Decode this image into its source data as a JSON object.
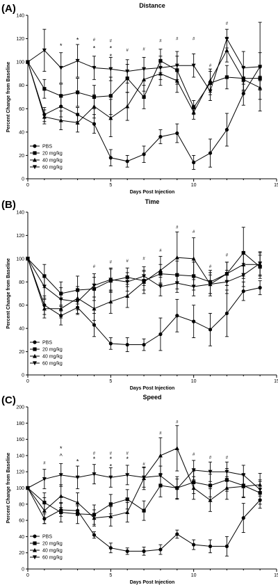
{
  "chart_data": [
    {
      "type": "line",
      "panel_label": "(A)",
      "title": "Distance",
      "xlabel": "Days Post Injection",
      "ylabel": "Percent Change from Baseline",
      "xlim": [
        0,
        15
      ],
      "ylim": [
        0,
        140
      ],
      "x_ticks": [
        0,
        5,
        10,
        15
      ],
      "y_ticks": [
        0,
        20,
        40,
        60,
        80,
        100,
        120,
        140
      ],
      "legend_position": "bottom-left",
      "series": [
        {
          "name": "PBS",
          "marker": "circle",
          "x": [
            0,
            1,
            2,
            3,
            4,
            5,
            6,
            7,
            8,
            9,
            10,
            11,
            12,
            13,
            14
          ],
          "y": [
            100,
            55,
            62,
            55,
            47,
            18,
            15,
            21,
            36,
            39,
            14,
            22,
            42,
            73,
            96
          ],
          "err": [
            0,
            6,
            9,
            6,
            8,
            7,
            5,
            7,
            6,
            8,
            6,
            12,
            14,
            10,
            12
          ]
        },
        {
          "name": "20 mg/kg",
          "marker": "square",
          "x": [
            0,
            1,
            2,
            3,
            4,
            5,
            6,
            7,
            8,
            9,
            10,
            11,
            12,
            13,
            14
          ],
          "y": [
            100,
            77,
            71,
            74,
            70,
            71,
            86,
            70,
            101,
            93,
            61,
            82,
            87,
            86,
            86
          ],
          "err": [
            0,
            8,
            10,
            12,
            10,
            16,
            12,
            10,
            10,
            12,
            6,
            10,
            10,
            10,
            10
          ]
        },
        {
          "name": "40 mg/kg",
          "marker": "triangle-up",
          "x": [
            0,
            1,
            2,
            3,
            4,
            5,
            6,
            7,
            8,
            9,
            10,
            11,
            12,
            13,
            14
          ],
          "y": [
            100,
            53,
            50,
            48,
            62,
            52,
            62,
            85,
            90,
            84,
            57,
            84,
            110,
            85,
            78
          ],
          "err": [
            0,
            6,
            8,
            8,
            10,
            16,
            12,
            10,
            10,
            10,
            6,
            10,
            10,
            10,
            10
          ]
        },
        {
          "name": "60 mg/kg",
          "marker": "triangle-down",
          "x": [
            0,
            1,
            2,
            3,
            4,
            5,
            6,
            7,
            8,
            9,
            10,
            11,
            12,
            13,
            14
          ],
          "y": [
            100,
            110,
            95,
            101,
            95,
            94,
            92,
            94,
            95,
            97,
            97,
            75,
            120,
            95,
            96
          ],
          "err": [
            0,
            18,
            13,
            14,
            10,
            10,
            10,
            10,
            10,
            12,
            10,
            8,
            8,
            14,
            38
          ]
        }
      ],
      "annotations": [
        {
          "x": 2,
          "y": 112,
          "text": "*"
        },
        {
          "x": 3,
          "y": 117,
          "text": "*"
        },
        {
          "x": 4,
          "y": 118,
          "text": "#"
        },
        {
          "x": 4,
          "y": 110,
          "text": "*"
        },
        {
          "x": 5,
          "y": 117,
          "text": "#"
        },
        {
          "x": 5,
          "y": 110,
          "text": "*"
        },
        {
          "x": 5,
          "y": 103,
          "text": "*"
        },
        {
          "x": 6,
          "y": 109,
          "text": "#"
        },
        {
          "x": 7,
          "y": 110,
          "text": "#"
        },
        {
          "x": 8,
          "y": 117,
          "text": "#"
        },
        {
          "x": 9,
          "y": 119,
          "text": "#"
        },
        {
          "x": 10,
          "y": 119,
          "text": "#"
        },
        {
          "x": 11,
          "y": 96,
          "text": "#"
        },
        {
          "x": 12,
          "y": 132,
          "text": "#"
        }
      ]
    },
    {
      "type": "line",
      "panel_label": "(B)",
      "title": "Time",
      "xlabel": "Days Post Injection",
      "ylabel": "Percent Change from Baseline",
      "xlim": [
        0,
        15
      ],
      "ylim": [
        0,
        140
      ],
      "x_ticks": [
        0,
        5,
        10,
        15
      ],
      "y_ticks": [
        0,
        20,
        40,
        60,
        80,
        100,
        120,
        140
      ],
      "legend_position": "bottom-left",
      "series": [
        {
          "name": "PBS",
          "marker": "circle",
          "x": [
            0,
            1,
            2,
            3,
            4,
            5,
            6,
            7,
            8,
            9,
            10,
            11,
            12,
            13,
            14
          ],
          "y": [
            100,
            60,
            51,
            58,
            43,
            27,
            26,
            26,
            35,
            51,
            46,
            39,
            53,
            72,
            75
          ],
          "err": [
            0,
            8,
            8,
            6,
            10,
            5,
            6,
            5,
            14,
            14,
            14,
            14,
            20,
            8,
            6
          ]
        },
        {
          "name": "20 mg/kg",
          "marker": "square",
          "x": [
            0,
            1,
            2,
            3,
            4,
            5,
            6,
            7,
            8,
            9,
            10,
            11,
            12,
            13,
            14
          ],
          "y": [
            100,
            85,
            70,
            73,
            74,
            81,
            84,
            81,
            87,
            86,
            85,
            80,
            87,
            105,
            93
          ],
          "err": [
            0,
            10,
            10,
            12,
            10,
            10,
            8,
            8,
            8,
            12,
            12,
            10,
            10,
            22,
            10
          ]
        },
        {
          "name": "40 mg/kg",
          "marker": "triangle-up",
          "x": [
            0,
            1,
            2,
            3,
            4,
            5,
            6,
            7,
            8,
            9,
            10,
            11,
            12,
            13,
            14
          ],
          "y": [
            100,
            57,
            57,
            66,
            57,
            63,
            68,
            80,
            90,
            101,
            100,
            78,
            87,
            95,
            95
          ],
          "err": [
            0,
            8,
            8,
            10,
            10,
            10,
            10,
            10,
            12,
            22,
            18,
            10,
            10,
            10,
            10
          ]
        },
        {
          "name": "60 mg/kg",
          "marker": "triangle-down",
          "x": [
            0,
            1,
            2,
            3,
            4,
            5,
            6,
            7,
            8,
            9,
            10,
            11,
            12,
            13,
            14
          ],
          "y": [
            100,
            76,
            65,
            63,
            77,
            82,
            80,
            85,
            76,
            79,
            76,
            78,
            80,
            86,
            96
          ],
          "err": [
            0,
            10,
            10,
            10,
            10,
            10,
            8,
            8,
            8,
            8,
            8,
            8,
            10,
            10,
            10
          ]
        }
      ],
      "annotations": [
        {
          "x": 4,
          "y": 92,
          "text": "#"
        },
        {
          "x": 5,
          "y": 96,
          "text": "#"
        },
        {
          "x": 6,
          "y": 97,
          "text": "#"
        },
        {
          "x": 7,
          "y": 99,
          "text": "#"
        },
        {
          "x": 8,
          "y": 106,
          "text": "#"
        },
        {
          "x": 9,
          "y": 126,
          "text": "#"
        },
        {
          "x": 10,
          "y": 122,
          "text": "#"
        },
        {
          "x": 11,
          "y": 92,
          "text": "#"
        },
        {
          "x": 12,
          "y": 102,
          "text": "#"
        }
      ]
    },
    {
      "type": "line",
      "panel_label": "(C)",
      "title": "Speed",
      "xlabel": "Days Post Injection",
      "ylabel": "Percent Change from Baseline",
      "xlim": [
        0,
        15
      ],
      "ylim": [
        0,
        200
      ],
      "x_ticks": [
        0,
        5,
        10,
        15
      ],
      "y_ticks": [
        0,
        20,
        40,
        60,
        80,
        100,
        120,
        140,
        160,
        180,
        200
      ],
      "legend_position": "bottom-left",
      "series": [
        {
          "name": "PBS",
          "marker": "circle",
          "x": [
            0,
            1,
            2,
            3,
            4,
            5,
            6,
            7,
            8,
            9,
            10,
            11,
            12,
            13,
            14
          ],
          "y": [
            100,
            62,
            73,
            72,
            42,
            26,
            22,
            22,
            24,
            43,
            30,
            28,
            28,
            63,
            85
          ],
          "err": [
            0,
            6,
            8,
            6,
            4,
            6,
            4,
            5,
            6,
            5,
            6,
            8,
            12,
            18,
            10
          ]
        },
        {
          "name": "20 mg/kg",
          "marker": "square",
          "x": [
            0,
            1,
            2,
            3,
            4,
            5,
            6,
            7,
            8,
            9,
            10,
            11,
            12,
            13,
            14
          ],
          "y": [
            100,
            82,
            70,
            68,
            67,
            80,
            86,
            72,
            103,
            100,
            107,
            103,
            110,
            103,
            94
          ],
          "err": [
            0,
            12,
            12,
            12,
            12,
            12,
            12,
            12,
            14,
            14,
            14,
            14,
            14,
            14,
            14
          ]
        },
        {
          "name": "40 mg/kg",
          "marker": "triangle-up",
          "x": [
            0,
            1,
            2,
            3,
            4,
            5,
            6,
            7,
            8,
            9,
            10,
            11,
            12,
            13,
            14
          ],
          "y": [
            100,
            72,
            90,
            82,
            63,
            65,
            70,
            112,
            140,
            149,
            100,
            85,
            100,
            102,
            104
          ],
          "err": [
            0,
            16,
            14,
            12,
            10,
            12,
            12,
            14,
            22,
            28,
            14,
            14,
            14,
            14,
            14
          ]
        },
        {
          "name": "60 mg/kg",
          "marker": "triangle-down",
          "x": [
            0,
            1,
            2,
            3,
            4,
            5,
            6,
            7,
            8,
            9,
            10,
            11,
            12,
            13,
            14
          ],
          "y": [
            100,
            111,
            116,
            113,
            117,
            113,
            116,
            113,
            115,
            99,
            122,
            120,
            120,
            116,
            98
          ],
          "err": [
            0,
            12,
            14,
            14,
            12,
            12,
            12,
            12,
            12,
            12,
            12,
            12,
            12,
            12,
            12
          ]
        }
      ],
      "annotations": [
        {
          "x": 1,
          "y": 129,
          "text": "#"
        },
        {
          "x": 2,
          "y": 146,
          "text": "*"
        },
        {
          "x": 2,
          "y": 137,
          "text": "^"
        },
        {
          "x": 3,
          "y": 130,
          "text": "*"
        },
        {
          "x": 4,
          "y": 141,
          "text": "#"
        },
        {
          "x": 4,
          "y": 133,
          "text": "*"
        },
        {
          "x": 5,
          "y": 141,
          "text": "#"
        },
        {
          "x": 5,
          "y": 133,
          "text": "*"
        },
        {
          "x": 5,
          "y": 124,
          "text": "*"
        },
        {
          "x": 6,
          "y": 141,
          "text": "#"
        },
        {
          "x": 6,
          "y": 133,
          "text": "*"
        },
        {
          "x": 7,
          "y": 128,
          "text": "#"
        },
        {
          "x": 8,
          "y": 166,
          "text": "#"
        },
        {
          "x": 9,
          "y": 180,
          "text": "#"
        },
        {
          "x": 10,
          "y": 140,
          "text": "#"
        },
        {
          "x": 11,
          "y": 136,
          "text": "#"
        },
        {
          "x": 12,
          "y": 136,
          "text": "#"
        }
      ]
    }
  ]
}
